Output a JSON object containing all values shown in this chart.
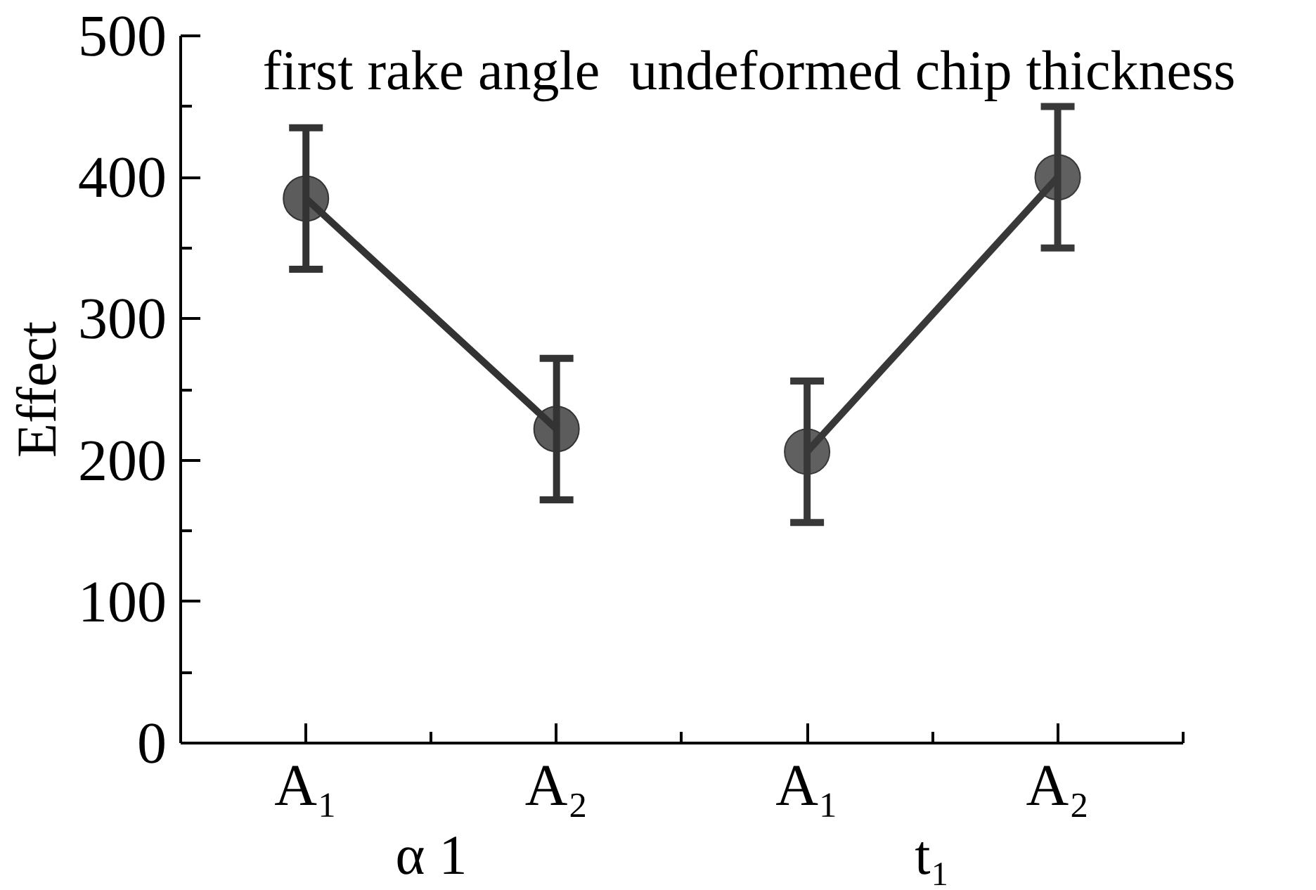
{
  "chart_data": {
    "type": "line",
    "categories": [
      "A₁",
      "A₂",
      "A₁",
      "A₂"
    ],
    "ylabel": "Effect",
    "ylim": [
      0,
      500
    ],
    "yticks": [
      0,
      {
        "value": 50,
        "label": null
      },
      100,
      {
        "value": 150,
        "label": null
      },
      200,
      {
        "value": 250,
        "label": null
      },
      300,
      {
        "value": 350,
        "label": null
      },
      400,
      {
        "value": 450,
        "label": null
      },
      500
    ],
    "marker": "circle",
    "line_style": "solid",
    "annotations": [
      "α 1",
      "t₁"
    ],
    "series": [
      {
        "name": "first rake angle",
        "color": "#333333",
        "values": [
          385,
          222,
          null,
          null
        ],
        "errors": [
          50,
          50,
          null,
          null
        ]
      },
      {
        "name": "undeformed chip thickness",
        "color": "#383838",
        "values": [
          null,
          null,
          206,
          400
        ],
        "errors": [
          null,
          null,
          50,
          50
        ]
      }
    ]
  }
}
